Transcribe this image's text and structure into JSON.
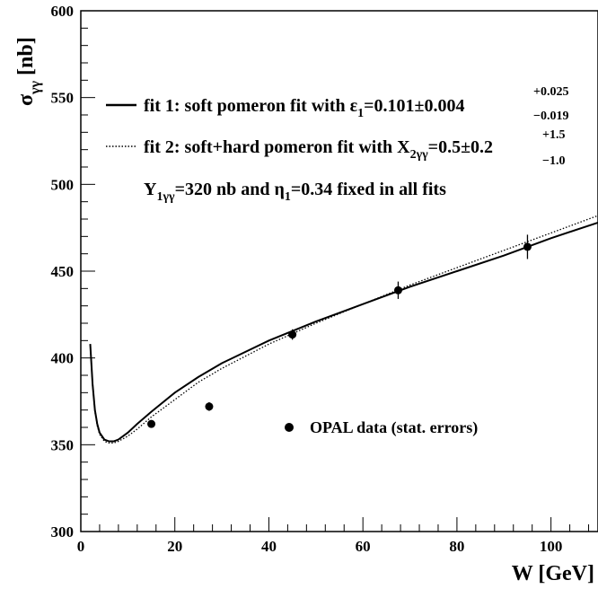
{
  "chart_data": {
    "type": "line",
    "xlabel": "W [GeV]",
    "ylabel_main": "σ",
    "ylabel_sub": "γγ",
    "ylabel_unit": "[nb]",
    "xlim": [
      0,
      110
    ],
    "ylim": [
      300,
      600
    ],
    "x_ticks": [
      0,
      20,
      40,
      60,
      80,
      100
    ],
    "y_ticks": [
      300,
      350,
      400,
      450,
      500,
      550,
      600
    ],
    "grid": false,
    "series": [
      {
        "name": "fit 1: soft pomeron fit with ε1=0.101±0.004 +0.025 −0.019",
        "style": "solid",
        "x": [
          2,
          2.5,
          3,
          3.5,
          4,
          5,
          6,
          7,
          8,
          10,
          12,
          15,
          20,
          25,
          30,
          40,
          50,
          60,
          70,
          80,
          90,
          100,
          110
        ],
        "y": [
          408,
          385,
          370,
          362,
          357,
          353,
          352,
          352,
          353,
          357,
          362,
          369,
          380,
          389,
          397,
          410,
          421,
          431,
          441,
          450,
          459,
          469,
          478
        ]
      },
      {
        "name": "fit 2: soft+hard pomeron fit with X2γγ=0.5±0.2 +1.5 −1.0",
        "style": "dotted",
        "x": [
          2,
          2.5,
          3,
          3.5,
          4,
          5,
          6,
          7,
          8,
          10,
          12,
          15,
          20,
          25,
          30,
          40,
          50,
          60,
          70,
          80,
          90,
          100,
          110
        ],
        "y": [
          408,
          384,
          369,
          361,
          356,
          352,
          351,
          351,
          352,
          355,
          359,
          366,
          376,
          386,
          394,
          408,
          420,
          431,
          442,
          452,
          462,
          472,
          482
        ]
      },
      {
        "name": "OPAL data (stat. errors)",
        "style": "points",
        "x": [
          15,
          27.3,
          45,
          67.5,
          95
        ],
        "y": [
          362,
          372,
          413.5,
          439,
          464
        ],
        "err": [
          2,
          2.5,
          3,
          5,
          7
        ]
      }
    ],
    "annotations": {
      "leg1_text": "fit 1: soft pomeron fit with ε",
      "leg1_sub": "1",
      "leg1_val": "=0.101±0.004",
      "leg1_sup": "+0.025",
      "leg1_low": "−0.019",
      "leg2_text": "fit 2: soft+hard pomeron fit with X",
      "leg2_sub": "2γγ",
      "leg2_val": "=0.5±0.2",
      "leg2_sup": "+1.5",
      "leg2_low": "−1.0",
      "note_y": "Y",
      "note_y_sub": "1γγ",
      "note_mid": "=320 nb and η",
      "note_eta_sub": "1",
      "note_end": "=0.34 fixed in all fits",
      "data_label": "OPAL data (stat. errors)"
    },
    "legend_position": "top-left"
  },
  "colors": {
    "line": "#000000",
    "background": "#ffffff"
  }
}
